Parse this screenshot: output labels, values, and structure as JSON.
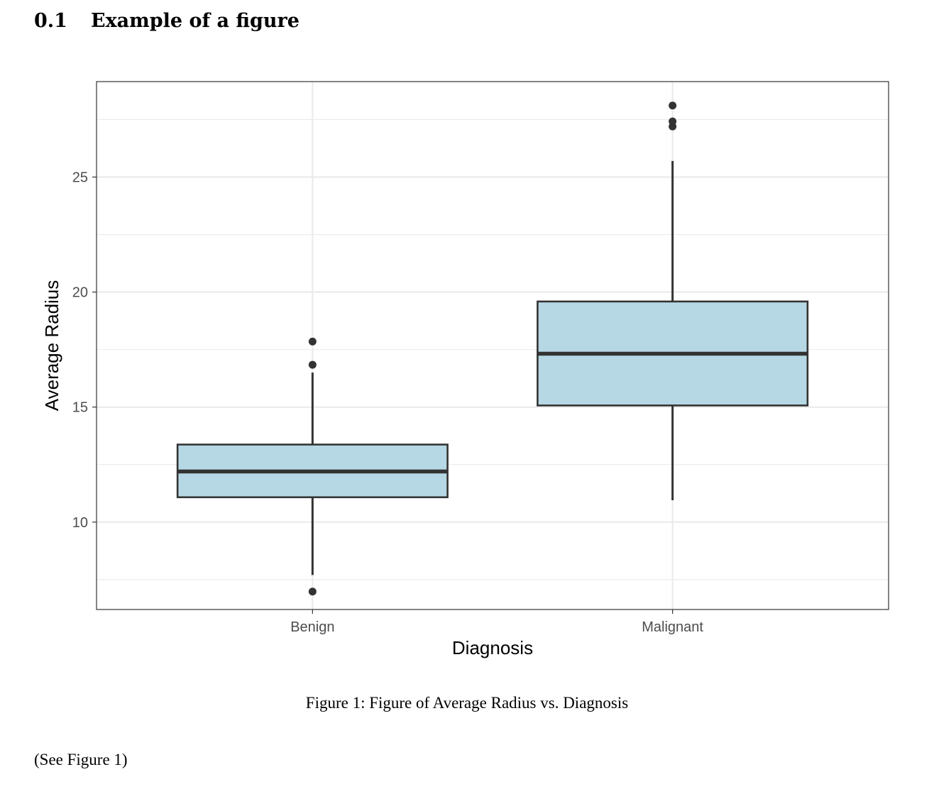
{
  "section": {
    "number": "0.1",
    "title": "Example of a figure"
  },
  "figure": {
    "caption": "Figure 1: Figure of Average Radius vs. Diagnosis"
  },
  "body_text": "(See Figure 1)",
  "chart_data": {
    "type": "boxplot",
    "xlabel": "Diagnosis",
    "ylabel": "Average Radius",
    "categories": [
      "Benign",
      "Malignant"
    ],
    "boxes": [
      {
        "category": "Benign",
        "whisker_low": 7.7,
        "q1": 11.08,
        "median": 12.2,
        "q3": 13.37,
        "whisker_high": 16.5,
        "outliers": [
          6.98,
          16.84,
          17.85
        ]
      },
      {
        "category": "Malignant",
        "whisker_low": 10.95,
        "q1": 15.07,
        "median": 17.32,
        "q3": 19.59,
        "whisker_high": 25.7,
        "outliers": [
          27.2,
          27.42,
          28.11
        ]
      }
    ],
    "yticks": [
      10,
      15,
      20,
      25
    ],
    "ylim": [
      6.2,
      29.15
    ],
    "grid": true,
    "colors": {
      "box_fill": "#b6d8e4",
      "box_stroke": "#333333",
      "grid": "#ebebeb",
      "panel_border": "#333333"
    }
  }
}
